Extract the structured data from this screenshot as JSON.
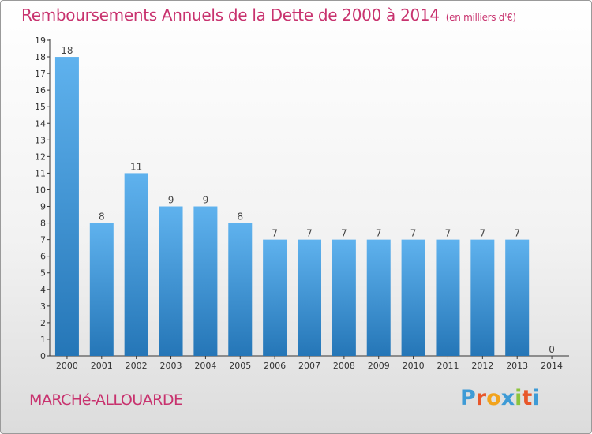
{
  "header": {
    "title": "Remboursements Annuels de la Dette de 2000 à 2014",
    "unit": "(en milliers d'€)"
  },
  "footer": {
    "commune": "MARCHé-ALLOUARDE",
    "brand": "Proxiti",
    "brand_colors": [
      "#3e9bd6",
      "#e8572b",
      "#f2a31c",
      "#3e9bd6",
      "#8cc43c",
      "#e8572b",
      "#3e9bd6"
    ]
  },
  "colors": {
    "title": "#c8326e",
    "bar_top": "#5fb2ee",
    "bar_bottom": "#2576b7",
    "axis": "#333333"
  },
  "chart_data": {
    "type": "bar",
    "categories": [
      "2000",
      "2001",
      "2002",
      "2003",
      "2004",
      "2005",
      "2006",
      "2007",
      "2008",
      "2009",
      "2010",
      "2011",
      "2012",
      "2013",
      "2014"
    ],
    "values": [
      18,
      8,
      11,
      9,
      9,
      8,
      7,
      7,
      7,
      7,
      7,
      7,
      7,
      7,
      0
    ],
    "data_labels": [
      "18",
      "8",
      "11",
      "9",
      "9",
      "8",
      "7",
      "7",
      "7",
      "7",
      "7",
      "7",
      "7",
      "7",
      "0"
    ],
    "ylim": [
      0,
      19
    ],
    "yticks": [
      0,
      1,
      2,
      3,
      4,
      5,
      6,
      7,
      8,
      9,
      10,
      11,
      12,
      13,
      14,
      15,
      16,
      17,
      18,
      19
    ],
    "grid": false
  }
}
